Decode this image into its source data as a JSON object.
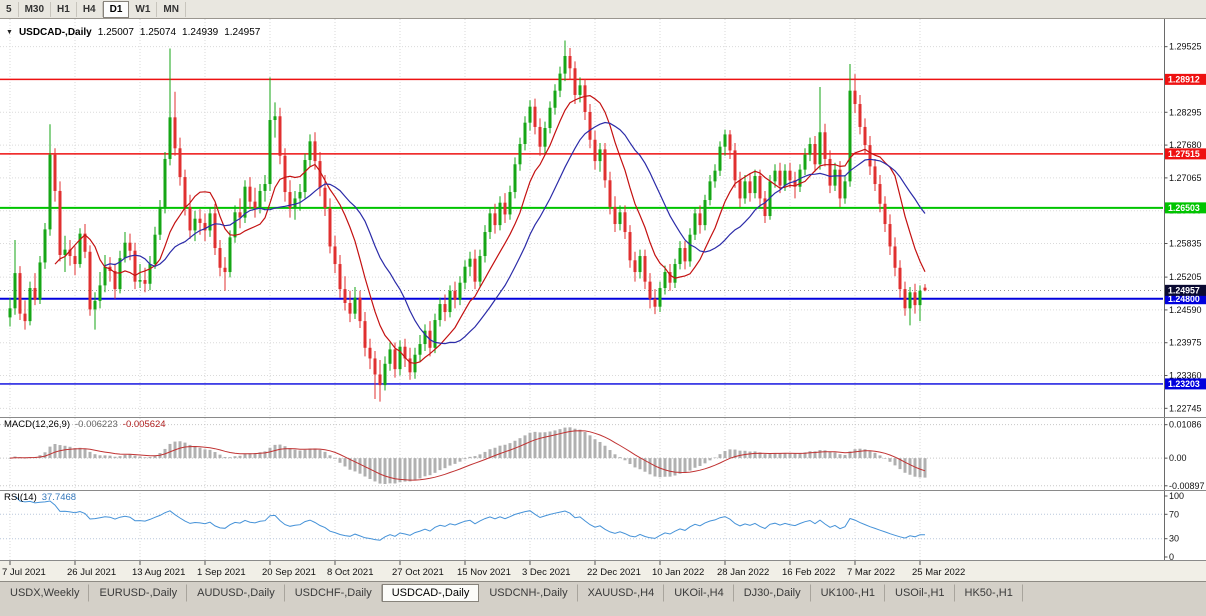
{
  "toolbar": {
    "timeframes": [
      {
        "label": "5",
        "active": false
      },
      {
        "label": "M30",
        "active": false
      },
      {
        "label": "H1",
        "active": false
      },
      {
        "label": "H4",
        "active": false
      },
      {
        "label": "D1",
        "active": true
      },
      {
        "label": "W1",
        "active": false
      },
      {
        "label": "MN",
        "active": false
      }
    ]
  },
  "chart_data": {
    "type": "candlestick",
    "title": {
      "icon": "▼",
      "symbol": "USDCAD-,Daily",
      "open": "1.25007",
      "high": "1.25074",
      "low": "1.24939",
      "close": "1.24957"
    },
    "y_axis": {
      "min": 1.2262,
      "max": 1.2965,
      "ticks": [
        1.29525,
        1.28295,
        1.2768,
        1.27065,
        1.2645,
        1.25835,
        1.25205,
        1.2459,
        1.23975,
        1.2336,
        1.22745
      ]
    },
    "x_labels": [
      "7 Jul 2021",
      "26 Jul 2021",
      "13 Aug 2021",
      "1 Sep 2021",
      "20 Sep 2021",
      "8 Oct 2021",
      "27 Oct 2021",
      "15 Nov 2021",
      "3 Dec 2021",
      "22 Dec 2021",
      "10 Jan 2022",
      "28 Jan 2022",
      "16 Feb 2022",
      "7 Mar 2022",
      "25 Mar 2022"
    ],
    "x_label_indices": [
      0,
      13,
      26,
      39,
      52,
      65,
      78,
      91,
      104,
      117,
      130,
      143,
      156,
      169,
      182
    ],
    "levels": [
      {
        "price": 1.28912,
        "label": "1.28912",
        "color": "#ee1111",
        "width": 1.4
      },
      {
        "price": 1.27515,
        "label": "1.27515",
        "color": "#ee1111",
        "width": 1.4
      },
      {
        "price": 1.26503,
        "label": "1.26503",
        "color": "#00c400",
        "width": 2
      },
      {
        "price": 1.248,
        "label": "1.24800",
        "color": "#0000dd",
        "width": 2
      },
      {
        "price": 1.23203,
        "label": "1.23203",
        "color": "#0000dd",
        "width": 1.4
      }
    ],
    "current_price": {
      "value": 1.24957,
      "label": "1.24957",
      "bg": "#0a0a32"
    },
    "bull_color": "#16a616",
    "bear_color": "#e03030",
    "ma_fast": {
      "period": 10,
      "color": "#c41111"
    },
    "ma_slow": {
      "period": 20,
      "color": "#2b2ba8"
    },
    "candles": [
      [
        1.2445,
        1.2482,
        1.2428,
        1.2462
      ],
      [
        1.2462,
        1.259,
        1.245,
        1.2528
      ],
      [
        1.2528,
        1.2541,
        1.244,
        1.2452
      ],
      [
        1.2452,
        1.2477,
        1.2422,
        1.2438
      ],
      [
        1.2438,
        1.2512,
        1.243,
        1.25
      ],
      [
        1.25,
        1.2528,
        1.2468,
        1.2478
      ],
      [
        1.2478,
        1.256,
        1.247,
        1.2548
      ],
      [
        1.2548,
        1.2622,
        1.2536,
        1.261
      ],
      [
        1.261,
        1.2807,
        1.2598,
        1.275
      ],
      [
        1.275,
        1.2762,
        1.2662,
        1.2682
      ],
      [
        1.2682,
        1.27,
        1.255,
        1.2562
      ],
      [
        1.2562,
        1.2598,
        1.253,
        1.2572
      ],
      [
        1.2572,
        1.259,
        1.2542,
        1.256
      ],
      [
        1.256,
        1.2578,
        1.2524,
        1.2545
      ],
      [
        1.2545,
        1.2612,
        1.2538,
        1.2602
      ],
      [
        1.2602,
        1.262,
        1.2556,
        1.2568
      ],
      [
        1.2568,
        1.258,
        1.2448,
        1.246
      ],
      [
        1.246,
        1.2492,
        1.2422,
        1.2476
      ],
      [
        1.2476,
        1.253,
        1.2462,
        1.2505
      ],
      [
        1.2505,
        1.2562,
        1.2492,
        1.254
      ],
      [
        1.254,
        1.2558,
        1.2512,
        1.2532
      ],
      [
        1.2532,
        1.2546,
        1.248,
        1.2498
      ],
      [
        1.2498,
        1.257,
        1.249,
        1.2556
      ],
      [
        1.2556,
        1.2605,
        1.2548,
        1.2585
      ],
      [
        1.2585,
        1.2602,
        1.2552,
        1.257
      ],
      [
        1.257,
        1.2585,
        1.2498,
        1.2512
      ],
      [
        1.2512,
        1.2545,
        1.25,
        1.2515
      ],
      [
        1.2515,
        1.2538,
        1.2492,
        1.2508
      ],
      [
        1.2508,
        1.256,
        1.2496,
        1.2545
      ],
      [
        1.2545,
        1.2615,
        1.2536,
        1.26
      ],
      [
        1.26,
        1.2665,
        1.259,
        1.2652
      ],
      [
        1.2652,
        1.2755,
        1.264,
        1.2742
      ],
      [
        1.2742,
        1.2949,
        1.273,
        1.282
      ],
      [
        1.282,
        1.2868,
        1.2748,
        1.2762
      ],
      [
        1.2762,
        1.2782,
        1.2692,
        1.2708
      ],
      [
        1.2708,
        1.2722,
        1.2636,
        1.2652
      ],
      [
        1.2652,
        1.2675,
        1.2592,
        1.2608
      ],
      [
        1.2608,
        1.2645,
        1.2588,
        1.263
      ],
      [
        1.263,
        1.2648,
        1.26,
        1.2622
      ],
      [
        1.2622,
        1.264,
        1.2588,
        1.2608
      ],
      [
        1.2608,
        1.2652,
        1.2596,
        1.264
      ],
      [
        1.264,
        1.2658,
        1.2562,
        1.2575
      ],
      [
        1.2575,
        1.259,
        1.2522,
        1.2538
      ],
      [
        1.2538,
        1.2558,
        1.2495,
        1.253
      ],
      [
        1.253,
        1.2608,
        1.252,
        1.2595
      ],
      [
        1.2595,
        1.2655,
        1.2585,
        1.2642
      ],
      [
        1.2642,
        1.2668,
        1.2612,
        1.2632
      ],
      [
        1.2632,
        1.2702,
        1.2622,
        1.269
      ],
      [
        1.269,
        1.2708,
        1.2648,
        1.2662
      ],
      [
        1.2662,
        1.2688,
        1.2632,
        1.265
      ],
      [
        1.265,
        1.2695,
        1.264,
        1.2682
      ],
      [
        1.2682,
        1.2712,
        1.2662,
        1.2695
      ],
      [
        1.2695,
        1.2895,
        1.2682,
        1.2815
      ],
      [
        1.2815,
        1.2848,
        1.2782,
        1.2822
      ],
      [
        1.2822,
        1.2838,
        1.2732,
        1.2748
      ],
      [
        1.2748,
        1.2762,
        1.2662,
        1.268
      ],
      [
        1.268,
        1.2702,
        1.2632,
        1.265
      ],
      [
        1.265,
        1.2682,
        1.2628,
        1.2668
      ],
      [
        1.2668,
        1.2695,
        1.2645,
        1.268
      ],
      [
        1.268,
        1.2752,
        1.2668,
        1.274
      ],
      [
        1.274,
        1.2788,
        1.2728,
        1.2775
      ],
      [
        1.2775,
        1.2792,
        1.2722,
        1.2738
      ],
      [
        1.2738,
        1.2755,
        1.2672,
        1.2688
      ],
      [
        1.2688,
        1.2712,
        1.2635,
        1.265
      ],
      [
        1.265,
        1.2668,
        1.2565,
        1.2578
      ],
      [
        1.2578,
        1.2598,
        1.2528,
        1.2545
      ],
      [
        1.2545,
        1.2562,
        1.2482,
        1.2498
      ],
      [
        1.2498,
        1.2522,
        1.2458,
        1.2472
      ],
      [
        1.2472,
        1.2495,
        1.2436,
        1.2452
      ],
      [
        1.2452,
        1.2502,
        1.2442,
        1.2482
      ],
      [
        1.2482,
        1.2495,
        1.2425,
        1.2438
      ],
      [
        1.2438,
        1.2455,
        1.2372,
        1.2388
      ],
      [
        1.2388,
        1.2405,
        1.2348,
        1.2368
      ],
      [
        1.2368,
        1.2382,
        1.2292,
        1.2338
      ],
      [
        1.2338,
        1.2365,
        1.2287,
        1.2318
      ],
      [
        1.2318,
        1.2372,
        1.2308,
        1.2358
      ],
      [
        1.2358,
        1.2398,
        1.2345,
        1.2385
      ],
      [
        1.2385,
        1.2398,
        1.2332,
        1.2348
      ],
      [
        1.2348,
        1.2402,
        1.2336,
        1.239
      ],
      [
        1.239,
        1.2405,
        1.2352,
        1.2368
      ],
      [
        1.2368,
        1.2388,
        1.2328,
        1.2342
      ],
      [
        1.2342,
        1.2388,
        1.233,
        1.2375
      ],
      [
        1.2375,
        1.2412,
        1.2362,
        1.2395
      ],
      [
        1.2395,
        1.2432,
        1.2382,
        1.242
      ],
      [
        1.242,
        1.2438,
        1.2372,
        1.2388
      ],
      [
        1.2388,
        1.2452,
        1.2378,
        1.244
      ],
      [
        1.244,
        1.2482,
        1.2428,
        1.247
      ],
      [
        1.247,
        1.2488,
        1.2438,
        1.2455
      ],
      [
        1.2455,
        1.2505,
        1.2445,
        1.2495
      ],
      [
        1.2495,
        1.2512,
        1.2462,
        1.2478
      ],
      [
        1.2478,
        1.2522,
        1.2468,
        1.251
      ],
      [
        1.251,
        1.2552,
        1.2498,
        1.254
      ],
      [
        1.254,
        1.2568,
        1.2522,
        1.2555
      ],
      [
        1.2555,
        1.2572,
        1.2498,
        1.2512
      ],
      [
        1.2512,
        1.2572,
        1.2502,
        1.256
      ],
      [
        1.256,
        1.2618,
        1.2548,
        1.2605
      ],
      [
        1.2605,
        1.2652,
        1.2592,
        1.264
      ],
      [
        1.264,
        1.2658,
        1.2602,
        1.2618
      ],
      [
        1.2618,
        1.2672,
        1.2608,
        1.266
      ],
      [
        1.266,
        1.2678,
        1.2622,
        1.2638
      ],
      [
        1.2638,
        1.2692,
        1.2628,
        1.268
      ],
      [
        1.268,
        1.2745,
        1.2668,
        1.2732
      ],
      [
        1.2732,
        1.2782,
        1.272,
        1.277
      ],
      [
        1.277,
        1.2822,
        1.2758,
        1.281
      ],
      [
        1.281,
        1.2852,
        1.2795,
        1.284
      ],
      [
        1.284,
        1.2855,
        1.2788,
        1.2802
      ],
      [
        1.2802,
        1.2818,
        1.2748,
        1.2765
      ],
      [
        1.2765,
        1.2812,
        1.2752,
        1.28
      ],
      [
        1.28,
        1.285,
        1.279,
        1.2838
      ],
      [
        1.2838,
        1.2882,
        1.2825,
        1.287
      ],
      [
        1.287,
        1.2915,
        1.2858,
        1.2902
      ],
      [
        1.2902,
        1.2964,
        1.2888,
        1.2935
      ],
      [
        1.2935,
        1.295,
        1.289,
        1.2912
      ],
      [
        1.2912,
        1.2925,
        1.2845,
        1.2862
      ],
      [
        1.2862,
        1.2895,
        1.2848,
        1.288
      ],
      [
        1.288,
        1.2892,
        1.2815,
        1.283
      ],
      [
        1.283,
        1.2845,
        1.2762,
        1.2778
      ],
      [
        1.2778,
        1.2795,
        1.2722,
        1.2738
      ],
      [
        1.2738,
        1.2772,
        1.2718,
        1.276
      ],
      [
        1.276,
        1.2772,
        1.2688,
        1.2702
      ],
      [
        1.2702,
        1.2718,
        1.2638,
        1.2652
      ],
      [
        1.2652,
        1.2672,
        1.2605,
        1.262
      ],
      [
        1.262,
        1.2655,
        1.2608,
        1.2642
      ],
      [
        1.2642,
        1.2655,
        1.2592,
        1.2605
      ],
      [
        1.2605,
        1.2618,
        1.2538,
        1.2552
      ],
      [
        1.2552,
        1.2568,
        1.2512,
        1.253
      ],
      [
        1.253,
        1.2572,
        1.2518,
        1.256
      ],
      [
        1.256,
        1.2572,
        1.2498,
        1.2512
      ],
      [
        1.2512,
        1.2528,
        1.2462,
        1.248
      ],
      [
        1.248,
        1.2498,
        1.2451,
        1.2465
      ],
      [
        1.2465,
        1.2512,
        1.2455,
        1.25
      ],
      [
        1.25,
        1.2542,
        1.2488,
        1.253
      ],
      [
        1.253,
        1.2545,
        1.2495,
        1.251
      ],
      [
        1.251,
        1.2555,
        1.25,
        1.2545
      ],
      [
        1.2545,
        1.2588,
        1.2535,
        1.2575
      ],
      [
        1.2575,
        1.2588,
        1.2535,
        1.255
      ],
      [
        1.255,
        1.2612,
        1.254,
        1.26
      ],
      [
        1.26,
        1.2652,
        1.259,
        1.264
      ],
      [
        1.264,
        1.2655,
        1.2602,
        1.2618
      ],
      [
        1.2618,
        1.2675,
        1.2608,
        1.2665
      ],
      [
        1.2665,
        1.2712,
        1.2655,
        1.27
      ],
      [
        1.27,
        1.2732,
        1.2688,
        1.272
      ],
      [
        1.272,
        1.2775,
        1.271,
        1.2765
      ],
      [
        1.2765,
        1.2797,
        1.2748,
        1.2788
      ],
      [
        1.2788,
        1.2796,
        1.2742,
        1.2758
      ],
      [
        1.2758,
        1.2772,
        1.2688,
        1.2702
      ],
      [
        1.2702,
        1.2718,
        1.2652,
        1.2668
      ],
      [
        1.2668,
        1.2712,
        1.2658,
        1.27
      ],
      [
        1.27,
        1.2715,
        1.2662,
        1.2678
      ],
      [
        1.2678,
        1.2722,
        1.2668,
        1.271
      ],
      [
        1.271,
        1.2722,
        1.2652,
        1.2668
      ],
      [
        1.2668,
        1.2682,
        1.2622,
        1.2635
      ],
      [
        1.2635,
        1.2712,
        1.2628,
        1.27
      ],
      [
        1.27,
        1.2732,
        1.2688,
        1.272
      ],
      [
        1.272,
        1.2735,
        1.2678,
        1.2692
      ],
      [
        1.2692,
        1.2732,
        1.2682,
        1.272
      ],
      [
        1.272,
        1.2735,
        1.2688,
        1.2702
      ],
      [
        1.2702,
        1.2718,
        1.2668,
        1.269
      ],
      [
        1.269,
        1.2732,
        1.268,
        1.2722
      ],
      [
        1.2722,
        1.2762,
        1.2712,
        1.275
      ],
      [
        1.275,
        1.2782,
        1.2738,
        1.277
      ],
      [
        1.277,
        1.2785,
        1.2718,
        1.2732
      ],
      [
        1.2732,
        1.2877,
        1.2722,
        1.2792
      ],
      [
        1.2792,
        1.2808,
        1.2728,
        1.2742
      ],
      [
        1.2742,
        1.2758,
        1.2678,
        1.2692
      ],
      [
        1.2692,
        1.2735,
        1.2682,
        1.2722
      ],
      [
        1.2722,
        1.2738,
        1.2652,
        1.2668
      ],
      [
        1.2668,
        1.2712,
        1.2658,
        1.27
      ],
      [
        1.27,
        1.292,
        1.269,
        1.287
      ],
      [
        1.287,
        1.2901,
        1.2828,
        1.2845
      ],
      [
        1.2845,
        1.2862,
        1.2788,
        1.2802
      ],
      [
        1.2802,
        1.2818,
        1.2752,
        1.2768
      ],
      [
        1.2768,
        1.2785,
        1.2712,
        1.2728
      ],
      [
        1.2728,
        1.2742,
        1.2682,
        1.2695
      ],
      [
        1.2695,
        1.2712,
        1.2642,
        1.2658
      ],
      [
        1.2658,
        1.2672,
        1.2605,
        1.262
      ],
      [
        1.262,
        1.2638,
        1.2562,
        1.2578
      ],
      [
        1.2578,
        1.2595,
        1.2522,
        1.2538
      ],
      [
        1.2538,
        1.2552,
        1.2482,
        1.2498
      ],
      [
        1.2498,
        1.2512,
        1.2448,
        1.2462
      ],
      [
        1.2462,
        1.2502,
        1.243,
        1.2492
      ],
      [
        1.2492,
        1.2508,
        1.2452,
        1.2468
      ],
      [
        1.2468,
        1.2505,
        1.2438,
        1.2495
      ],
      [
        1.25007,
        1.25074,
        1.24939,
        1.24957
      ]
    ]
  },
  "indicators": {
    "macd": {
      "label": "MACD(12,26,9)",
      "value_main": "-0.006223",
      "value_signal": "-0.005624",
      "fast": 12,
      "slow": 26,
      "signal_period": 9,
      "axis": [
        {
          "value": 0.01086,
          "label": "0.01086"
        },
        {
          "value": 0,
          "label": "0.00"
        },
        {
          "value": -0.00897,
          "label": "-0.00897"
        }
      ],
      "histogram_color": "#b0b0b0",
      "signal_color": "#c03232"
    },
    "rsi": {
      "label": "RSI(14)",
      "value": "37.7468",
      "period": 14,
      "axis": [
        {
          "value": 100,
          "label": "100"
        },
        {
          "value": 70,
          "label": "70"
        },
        {
          "value": 30,
          "label": "30"
        },
        {
          "value": 0,
          "label": "0"
        }
      ],
      "levels": [
        70,
        30
      ],
      "color": "#4592d8"
    }
  },
  "tabs": {
    "items": [
      "USDX,Weekly",
      "EURUSD-,Daily",
      "AUDUSD-,Daily",
      "USDCHF-,Daily",
      "USDCAD-,Daily",
      "USDCNH-,Daily",
      "XAUUSD-,H4",
      "UKOil-,H4",
      "DJ30-,Daily",
      "UK100-,H1",
      "USOil-,H1",
      "HK50-,H1"
    ],
    "active": "USDCAD-,Daily"
  }
}
